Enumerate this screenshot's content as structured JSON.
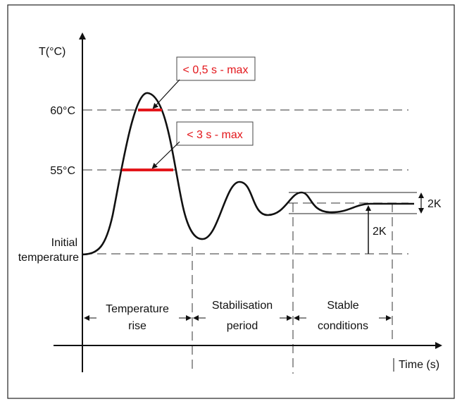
{
  "colors": {
    "curve": "#111111",
    "highlight": "#e3161b",
    "callout_text": "#e3161b",
    "frame": "#222222",
    "dash": "#333333"
  },
  "axes": {
    "y_label": "T(°C)",
    "x_label": "Time (s)"
  },
  "levels": {
    "t60": "60°C",
    "t55": "55°C",
    "initial_line1": "Initial",
    "initial_line2": "temperature"
  },
  "callouts": {
    "upper": "< 0,5 s - max",
    "lower": "< 3 s - max"
  },
  "tolerance": {
    "band": "2K",
    "offset": "2K"
  },
  "phases": [
    {
      "line1": "Temperature",
      "line2": "rise"
    },
    {
      "line1": "Stabilisation",
      "line2": "period"
    },
    {
      "line1": "Stable",
      "line2": "conditions"
    }
  ]
}
